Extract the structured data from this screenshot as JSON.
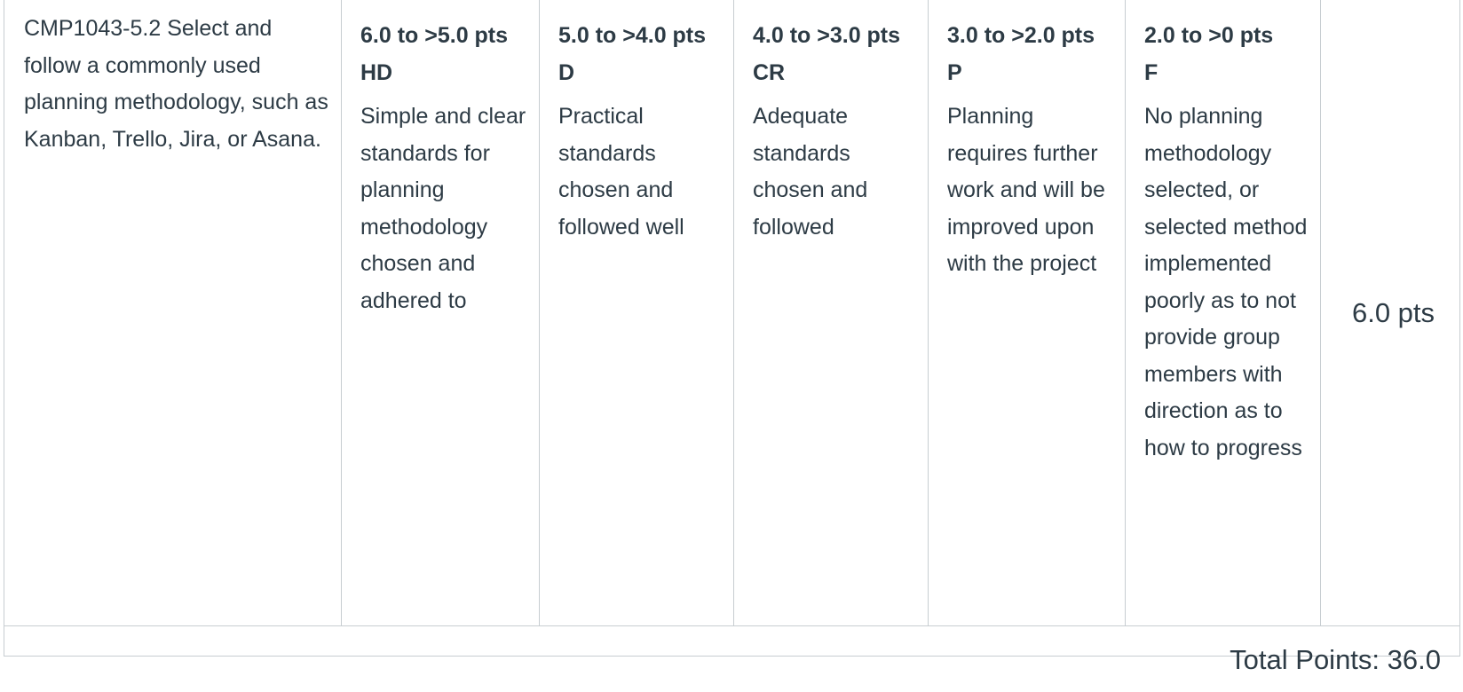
{
  "criterion": {
    "description": "CMP1043-5.2 Select and follow a commonly used planning methodology, such as Kanban, Trello, Jira, or Asana.",
    "ratings": [
      {
        "points": "6.0 to >5.0 pts",
        "grade": "HD",
        "description": "Simple and clear standards for planning methodology chosen and adhered to"
      },
      {
        "points": "5.0 to >4.0 pts",
        "grade": "D",
        "description": "Practical standards chosen and followed well"
      },
      {
        "points": "4.0 to >3.0 pts",
        "grade": "CR",
        "description": "Adequate standards chosen and followed"
      },
      {
        "points": "3.0 to >2.0 pts",
        "grade": "P",
        "description": "Planning requires further work and will be improved upon with the project"
      },
      {
        "points": "2.0 to >0 pts",
        "grade": "F",
        "description": "No planning methodology selected, or selected method implemented poorly as to not provide group members with direction as to how to progress"
      }
    ],
    "points": "6.0 pts"
  },
  "total": {
    "label": "Total Points: 36.0"
  }
}
